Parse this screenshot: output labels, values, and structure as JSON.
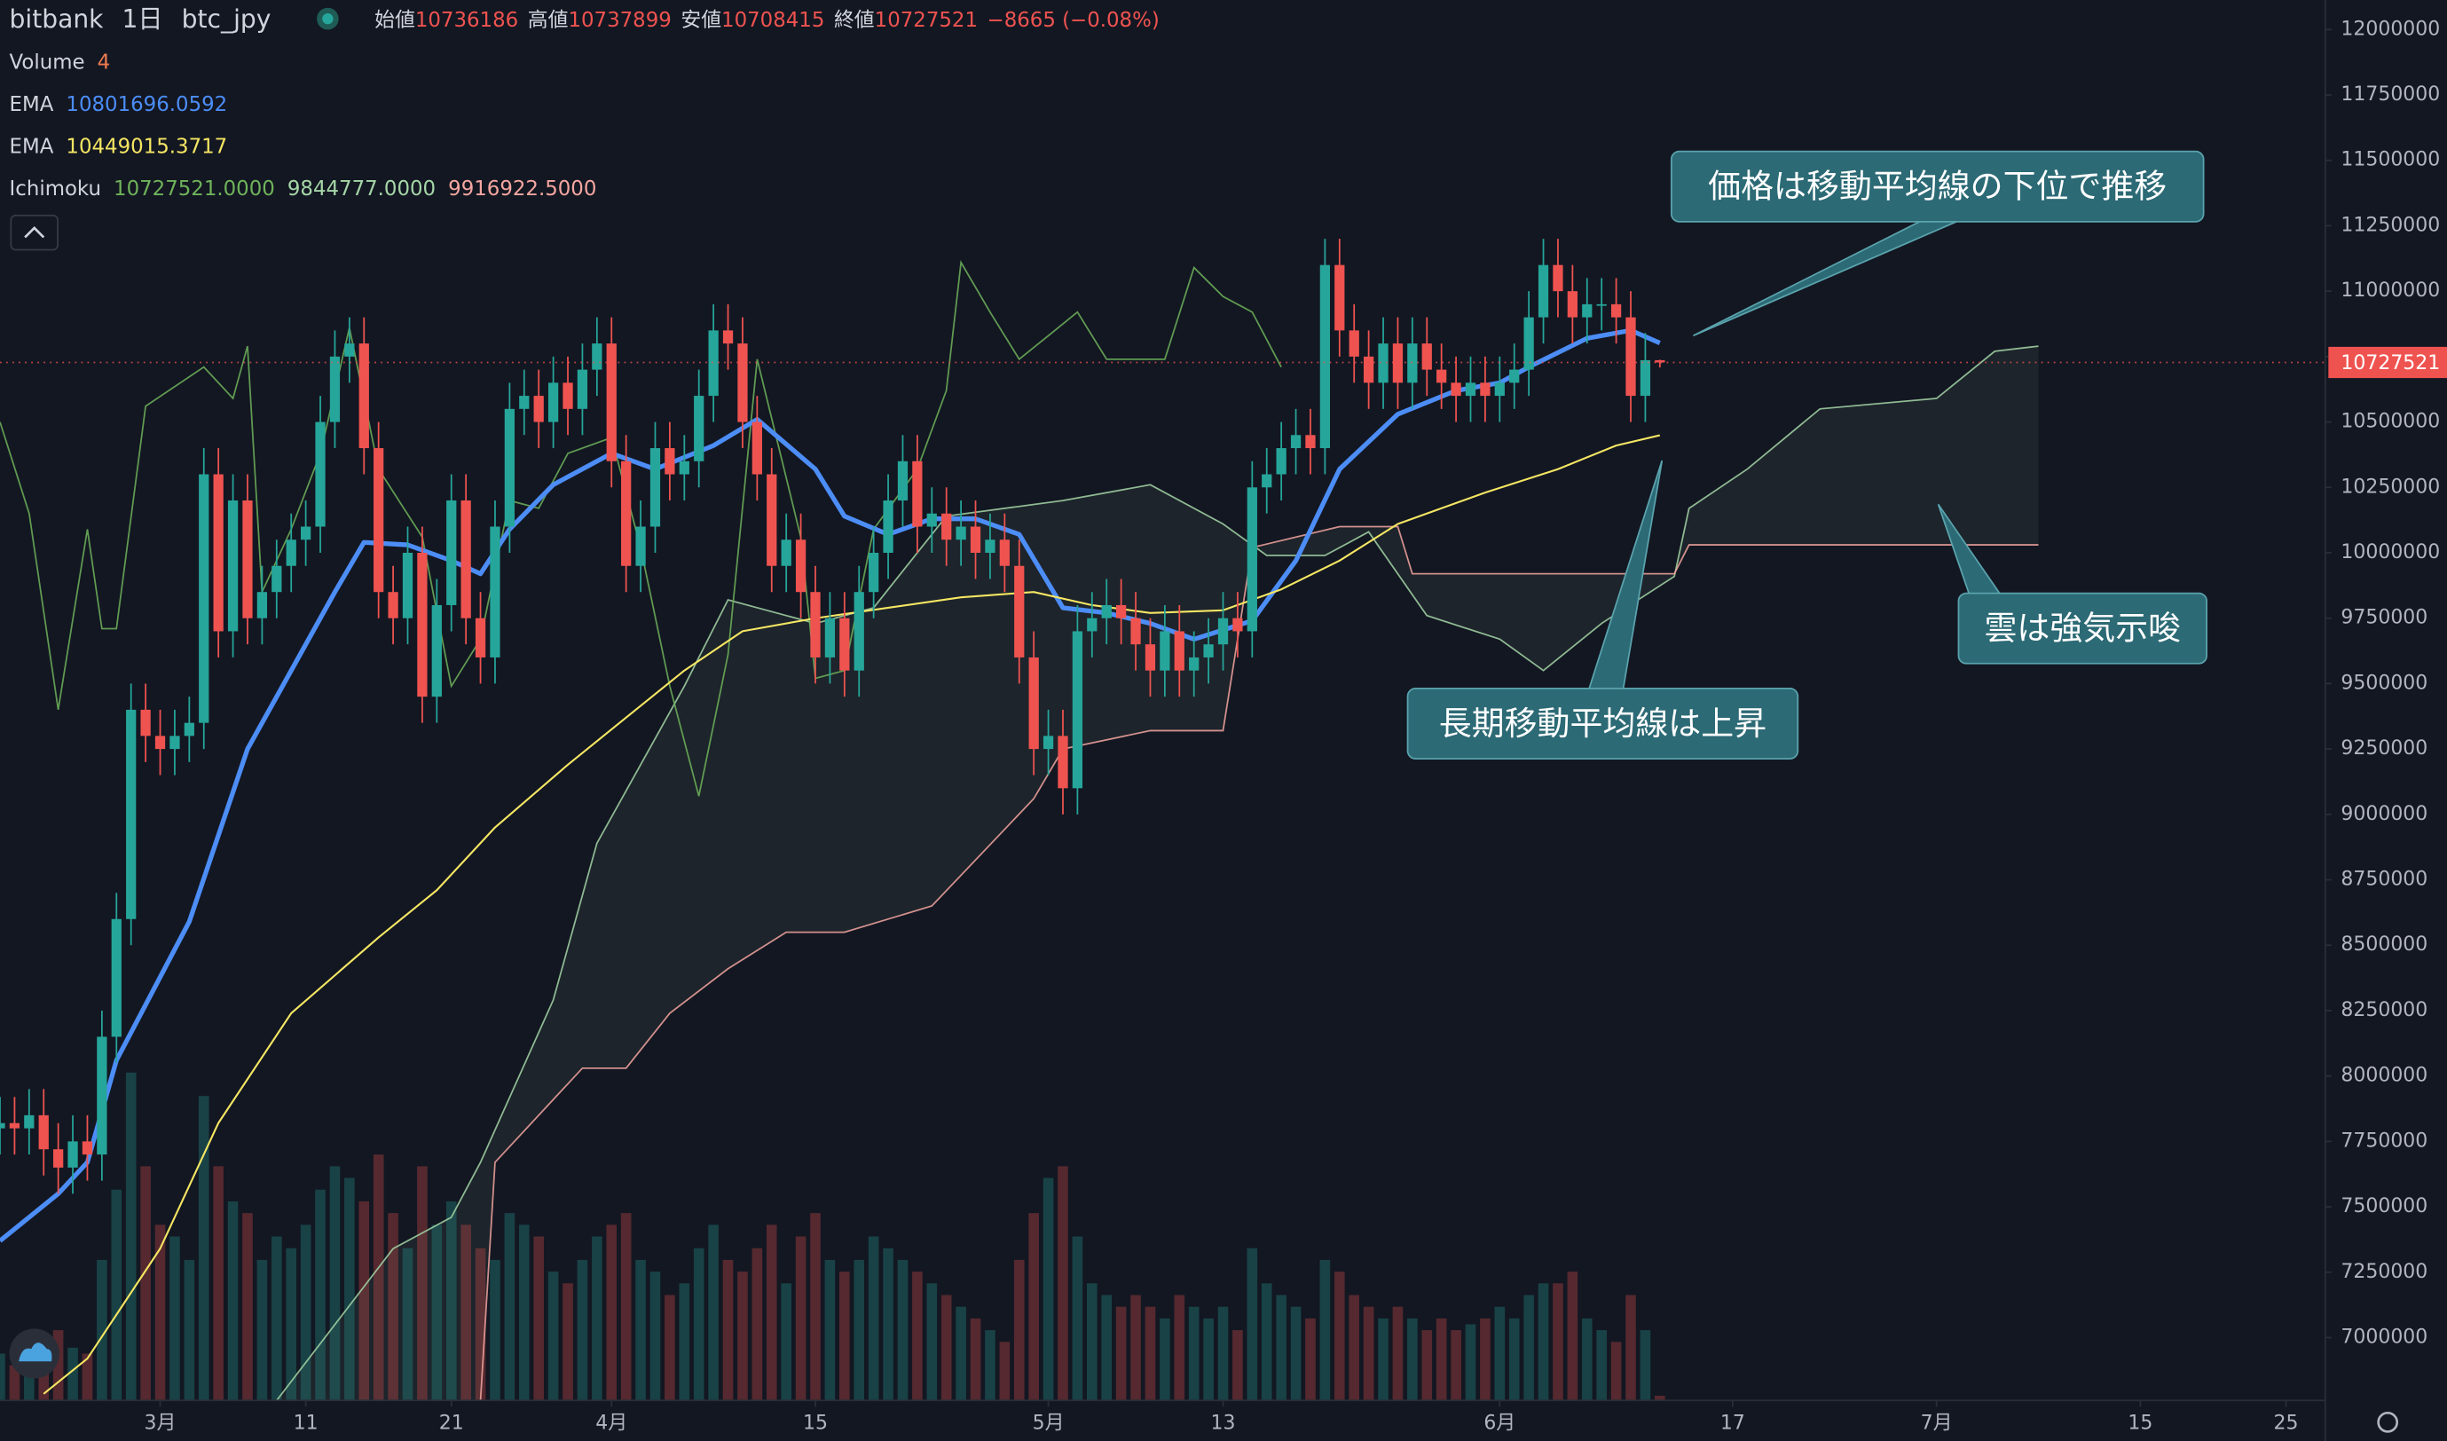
{
  "header": {
    "exchange": "bitbank",
    "interval": "1日",
    "symbol": "btc_jpy",
    "open_label": "始値",
    "high_label": "高値",
    "low_label": "安値",
    "close_label": "終値",
    "change_label": "−8665 (−0.08%)"
  },
  "chart_data": {
    "type": "candlestick",
    "x": [
      50,
      51,
      52,
      53,
      54,
      55,
      56,
      57,
      58,
      59,
      60,
      61,
      62,
      63,
      64,
      65,
      66,
      67,
      68,
      69,
      70,
      71,
      72,
      73,
      74,
      75,
      76,
      77,
      78,
      79,
      80,
      81,
      82,
      83,
      84,
      85,
      86,
      87,
      88,
      89,
      90,
      91,
      92,
      93,
      94,
      95,
      96,
      97,
      98,
      99,
      100,
      101,
      102,
      103,
      104,
      105,
      106,
      107,
      108,
      109,
      110,
      111,
      112,
      113,
      114,
      115,
      116,
      117,
      118,
      119,
      120,
      121,
      122,
      123,
      124,
      125,
      126,
      127,
      128,
      129,
      130,
      131,
      132,
      133,
      134,
      135,
      136,
      137,
      138,
      139,
      140,
      141,
      142,
      143,
      144,
      145,
      146,
      147,
      148,
      149,
      150,
      151,
      152,
      153,
      154,
      155,
      156,
      157,
      158,
      159,
      160,
      161,
      162,
      163,
      164
    ],
    "open": [
      7800000,
      7820000,
      7800000,
      7850000,
      7720000,
      7650000,
      7750000,
      7700000,
      8150000,
      8600000,
      9400000,
      9300000,
      9250000,
      9300000,
      9350000,
      10300000,
      9700000,
      10200000,
      9750000,
      9850000,
      9950000,
      10050000,
      10100000,
      10500000,
      10750000,
      10800000,
      10400000,
      9850000,
      9750000,
      10000000,
      9450000,
      9800000,
      10200000,
      9750000,
      9600000,
      10100000,
      10550000,
      10600000,
      10500000,
      10650000,
      10550000,
      10700000,
      10800000,
      10350000,
      9950000,
      10100000,
      10400000,
      10300000,
      10350000,
      10600000,
      10850000,
      10800000,
      10500000,
      10300000,
      9950000,
      10050000,
      9850000,
      9600000,
      9750000,
      9550000,
      9850000,
      10000000,
      10200000,
      10350000,
      10100000,
      10150000,
      10050000,
      10100000,
      10000000,
      10050000,
      9950000,
      9600000,
      9250000,
      9300000,
      9100000,
      9700000,
      9750000,
      9800000,
      9750000,
      9650000,
      9550000,
      9700000,
      9550000,
      9600000,
      9650000,
      9750000,
      9700000,
      10250000,
      10300000,
      10400000,
      10450000,
      10400000,
      11100000,
      10850000,
      10750000,
      10650000,
      10800000,
      10650000,
      10800000,
      10700000,
      10650000,
      10600000,
      10650000,
      10600000,
      10650000,
      10700000,
      10900000,
      11100000,
      11000000,
      10900000,
      10950000,
      10950000,
      10900000,
      10600000,
      10736186
    ],
    "high": [
      7920000,
      7920000,
      7950000,
      7950000,
      7820000,
      7850000,
      7850000,
      8250000,
      8700000,
      9500000,
      9500000,
      9400000,
      9400000,
      9450000,
      10400000,
      10400000,
      10300000,
      10300000,
      9950000,
      10050000,
      10150000,
      10200000,
      10600000,
      10850000,
      10900000,
      10900000,
      10500000,
      9950000,
      10100000,
      10100000,
      9900000,
      10300000,
      10300000,
      9850000,
      10200000,
      10650000,
      10700000,
      10700000,
      10750000,
      10750000,
      10800000,
      10900000,
      10900000,
      10450000,
      10200000,
      10500000,
      10500000,
      10450000,
      10700000,
      10950000,
      10950000,
      10900000,
      10600000,
      10400000,
      10150000,
      10150000,
      9950000,
      9850000,
      9850000,
      9950000,
      10100000,
      10300000,
      10450000,
      10450000,
      10250000,
      10250000,
      10200000,
      10200000,
      10150000,
      10150000,
      10050000,
      9700000,
      9400000,
      9400000,
      9800000,
      9850000,
      9900000,
      9900000,
      9850000,
      9750000,
      9800000,
      9800000,
      9700000,
      9750000,
      9850000,
      9850000,
      10350000,
      10400000,
      10500000,
      10550000,
      10550000,
      11200000,
      11200000,
      10950000,
      10850000,
      10900000,
      10900000,
      10900000,
      10900000,
      10800000,
      10750000,
      10750000,
      10750000,
      10750000,
      10800000,
      11000000,
      11200000,
      11200000,
      11100000,
      11050000,
      11050000,
      11050000,
      11000000,
      10840000,
      10737899
    ],
    "low": [
      7700000,
      7700000,
      7700000,
      7620000,
      7550000,
      7550000,
      7600000,
      7600000,
      8050000,
      8500000,
      9200000,
      9150000,
      9150000,
      9200000,
      9250000,
      9600000,
      9600000,
      9650000,
      9650000,
      9750000,
      9850000,
      9950000,
      10000000,
      10400000,
      10650000,
      10300000,
      9750000,
      9650000,
      9650000,
      9350000,
      9350000,
      9700000,
      9650000,
      9500000,
      9500000,
      10000000,
      10450000,
      10400000,
      10400000,
      10450000,
      10450000,
      10600000,
      10250000,
      9850000,
      9850000,
      10000000,
      10200000,
      10200000,
      10250000,
      10500000,
      10700000,
      10400000,
      10200000,
      9850000,
      9850000,
      9750000,
      9500000,
      9500000,
      9450000,
      9450000,
      9750000,
      9900000,
      10100000,
      10000000,
      10000000,
      9950000,
      9950000,
      9900000,
      9900000,
      9850000,
      9500000,
      9150000,
      9150000,
      9000000,
      9000000,
      9600000,
      9650000,
      9650000,
      9550000,
      9450000,
      9450000,
      9450000,
      9450000,
      9500000,
      9550000,
      9600000,
      9600000,
      10150000,
      10200000,
      10300000,
      10300000,
      10300000,
      10750000,
      10650000,
      10550000,
      10550000,
      10550000,
      10550000,
      10600000,
      10550000,
      10500000,
      10500000,
      10500000,
      10500000,
      10550000,
      10600000,
      10800000,
      10900000,
      10800000,
      10800000,
      10850000,
      10800000,
      10500000,
      10500000,
      10708415
    ],
    "close": [
      7820000,
      7800000,
      7850000,
      7720000,
      7650000,
      7750000,
      7700000,
      8150000,
      8600000,
      9400000,
      9300000,
      9250000,
      9300000,
      9350000,
      10300000,
      9700000,
      10200000,
      9750000,
      9850000,
      9950000,
      10050000,
      10100000,
      10500000,
      10750000,
      10800000,
      10400000,
      9850000,
      9750000,
      10000000,
      9450000,
      9800000,
      10200000,
      9750000,
      9600000,
      10100000,
      10550000,
      10600000,
      10500000,
      10650000,
      10550000,
      10700000,
      10800000,
      10350000,
      9950000,
      10100000,
      10400000,
      10300000,
      10350000,
      10600000,
      10850000,
      10800000,
      10500000,
      10300000,
      9950000,
      10050000,
      9850000,
      9600000,
      9750000,
      9550000,
      9850000,
      10000000,
      10200000,
      10350000,
      10100000,
      10150000,
      10050000,
      10100000,
      10000000,
      10050000,
      9950000,
      9600000,
      9250000,
      9300000,
      9100000,
      9700000,
      9750000,
      9800000,
      9750000,
      9650000,
      9550000,
      9700000,
      9550000,
      9600000,
      9650000,
      9750000,
      9700000,
      10250000,
      10300000,
      10400000,
      10450000,
      10400000,
      11100000,
      10850000,
      10750000,
      10650000,
      10800000,
      10650000,
      10800000,
      10700000,
      10650000,
      10600000,
      10650000,
      10600000,
      10650000,
      10700000,
      10900000,
      11100000,
      11000000,
      10900000,
      10950000,
      10950000,
      10900000,
      10600000,
      10736186,
      10727521
    ],
    "up_color": "#26a69a",
    "down_color": "#ef5350",
    "volume": {
      "name": "Volume",
      "values": [
        40,
        30,
        35,
        50,
        60,
        45,
        40,
        120,
        180,
        280,
        200,
        150,
        140,
        120,
        260,
        200,
        170,
        160,
        120,
        140,
        130,
        150,
        180,
        200,
        190,
        170,
        210,
        160,
        130,
        200,
        150,
        170,
        150,
        130,
        120,
        160,
        150,
        140,
        110,
        100,
        120,
        140,
        150,
        160,
        120,
        110,
        90,
        100,
        130,
        150,
        120,
        110,
        130,
        150,
        100,
        140,
        160,
        120,
        110,
        120,
        140,
        130,
        120,
        110,
        100,
        90,
        80,
        70,
        60,
        50,
        120,
        160,
        190,
        200,
        140,
        100,
        90,
        80,
        90,
        80,
        70,
        90,
        80,
        70,
        80,
        60,
        130,
        100,
        90,
        80,
        70,
        120,
        110,
        90,
        80,
        70,
        80,
        70,
        60,
        70,
        60,
        65,
        70,
        80,
        70,
        90,
        100,
        100,
        110,
        70,
        60,
        50,
        90,
        60,
        4
      ]
    },
    "lines": [
      {
        "name": "EMA",
        "color": "#4c8df6",
        "x": [
          50,
          54,
          56,
          58,
          63,
          67,
          70,
          73,
          75,
          78,
          81,
          83,
          85,
          88,
          92,
          95,
          99,
          102,
          106,
          108,
          111,
          114,
          117,
          120,
          123,
          126,
          129,
          132,
          136,
          139,
          142,
          146,
          150,
          153,
          155,
          159,
          162,
          164
        ],
        "values": [
          7370000,
          7550000,
          7670000,
          8060000,
          8590000,
          9250000,
          9550000,
          9850000,
          10040000,
          10030000,
          9970000,
          9920000,
          10090000,
          10260000,
          10380000,
          10320000,
          10410000,
          10510000,
          10320000,
          10140000,
          10070000,
          10130000,
          10130000,
          10070000,
          9790000,
          9770000,
          9730000,
          9670000,
          9740000,
          9970000,
          10320000,
          10530000,
          10620000,
          10650000,
          10710000,
          10820000,
          10850000,
          10801696.0592
        ]
      },
      {
        "name": "EMA",
        "color": "#f5e663",
        "x": [
          53,
          56,
          61,
          65,
          70,
          76,
          80,
          84,
          89,
          93,
          97,
          101,
          106,
          111,
          116,
          121,
          125,
          129,
          134,
          138,
          142,
          146,
          152,
          157,
          161,
          164
        ],
        "values": [
          6785000,
          6920000,
          7340000,
          7820000,
          8240000,
          8530000,
          8710000,
          8950000,
          9190000,
          9370000,
          9550000,
          9700000,
          9750000,
          9790000,
          9830000,
          9850000,
          9800000,
          9770000,
          9780000,
          9860000,
          9970000,
          10110000,
          10230000,
          10320000,
          10410000,
          10449015.3717
        ]
      }
    ],
    "ichimoku": {
      "name": "Ichimoku",
      "value_labels": [
        "10727521.0000",
        "9844777.0000",
        "9916922.5000"
      ],
      "lagging": {
        "color": "#6fb35a",
        "x": [
          50,
          52,
          54,
          56,
          57,
          58,
          60,
          64,
          66,
          67,
          68,
          70,
          72,
          74,
          76,
          79,
          81,
          83,
          85,
          87,
          89,
          92,
          94,
          96,
          98,
          100,
          102,
          105,
          106,
          108,
          110,
          113,
          115,
          116,
          118,
          120,
          122,
          124,
          126,
          130,
          132,
          134,
          136,
          138
        ],
        "values": [
          10500000,
          10150000,
          9400000,
          10090000,
          9710000,
          9710000,
          10560000,
          10710000,
          10590000,
          10790000,
          9850000,
          10090000,
          10380000,
          10860000,
          10320000,
          10060000,
          9490000,
          9670000,
          10200000,
          10170000,
          10380000,
          10440000,
          10020000,
          9490000,
          9070000,
          9610000,
          10740000,
          10060000,
          9520000,
          9550000,
          10090000,
          10320000,
          10620000,
          11110000,
          10920000,
          10740000,
          10830000,
          10920000,
          10740000,
          10740000,
          11090000,
          10980000,
          10920000,
          10710000
        ]
      },
      "span_a": {
        "color": "#a5d6a7",
        "x": [
          69,
          77,
          81,
          83,
          88,
          91,
          94,
          97,
          100,
          106,
          110,
          115,
          123,
          129,
          134,
          137,
          141,
          144,
          148,
          153,
          156,
          160,
          165,
          166,
          170,
          175,
          183,
          187,
          190
        ],
        "values": [
          6760000,
          7340000,
          7460000,
          7670000,
          8290000,
          8890000,
          9190000,
          9490000,
          9820000,
          9730000,
          9790000,
          10140000,
          10200000,
          10260000,
          10110000,
          9990000,
          9990000,
          10080000,
          9760000,
          9670000,
          9550000,
          9730000,
          9910000,
          10170000,
          10320000,
          10550000,
          10590000,
          10770000,
          10790000
        ]
      },
      "span_b": {
        "color": "#f4a6a0",
        "x": [
          83,
          84,
          90,
          93,
          96,
          100,
          104,
          108,
          114,
          121,
          123,
          129,
          134,
          136,
          142,
          146,
          147,
          165,
          166,
          190
        ],
        "values": [
          6760000,
          7670000,
          8030000,
          8030000,
          8240000,
          8410000,
          8550000,
          8550000,
          8650000,
          9060000,
          9250000,
          9320000,
          9320000,
          10020000,
          10100000,
          10100000,
          9920000,
          9920000,
          10030000,
          10030000
        ]
      }
    },
    "xlim": [
      50,
      209.7
    ],
    "ylim": [
      6760000,
      12113000
    ],
    "xticks": [
      {
        "value": 61,
        "label": "3月"
      },
      {
        "value": 71,
        "label": "11"
      },
      {
        "value": 81,
        "label": "21"
      },
      {
        "value": 92,
        "label": "4月"
      },
      {
        "value": 106,
        "label": "15"
      },
      {
        "value": 122,
        "label": "5月"
      },
      {
        "value": 134,
        "label": "13"
      },
      {
        "value": 153,
        "label": "6月"
      },
      {
        "value": 169,
        "label": "17"
      },
      {
        "value": 183,
        "label": "7月"
      },
      {
        "value": 197,
        "label": "15"
      },
      {
        "value": 207,
        "label": "25"
      }
    ],
    "yticks": [
      7000000,
      7250000,
      7500000,
      7750000,
      8000000,
      8250000,
      8500000,
      8750000,
      9000000,
      9250000,
      9500000,
      9750000,
      10000000,
      10250000,
      10500000,
      10750000,
      11000000,
      11250000,
      11500000,
      11750000,
      12000000
    ],
    "grid": false,
    "annotations": [
      "価格は移動平均線の下位で推移",
      "長期移動平均線は上昇",
      "雲は強気示唆"
    ]
  }
}
